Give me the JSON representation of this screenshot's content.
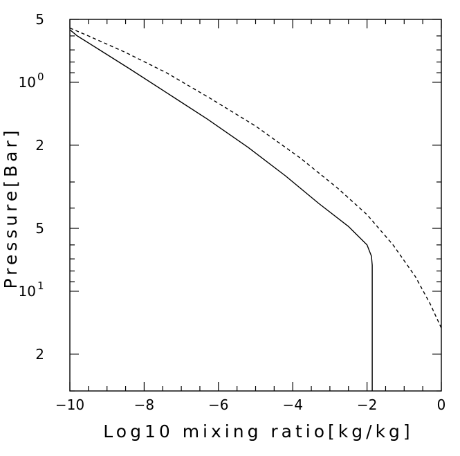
{
  "chart_data": {
    "type": "line",
    "title": "",
    "xlabel": "Log10 mixing ratio[kg/kg]",
    "ylabel": "Pressure[Bar]",
    "xlim": [
      -10,
      0
    ],
    "ylim": [
      0.5,
      30
    ],
    "y_scale": "log",
    "y_inverted": true,
    "grid": false,
    "legend": "none",
    "x_ticks": [
      {
        "value": -10,
        "label": "−10"
      },
      {
        "value": -8,
        "label": "−8"
      },
      {
        "value": -6,
        "label": "−6"
      },
      {
        "value": -4,
        "label": "−4"
      },
      {
        "value": -2,
        "label": "−2"
      },
      {
        "value": 0,
        "label": "0"
      }
    ],
    "y_ticks": [
      {
        "value": 0.5,
        "label": "5",
        "exp": ""
      },
      {
        "value": 1,
        "label": "10",
        "exp": "0"
      },
      {
        "value": 2,
        "label": "2",
        "exp": ""
      },
      {
        "value": 5,
        "label": "5",
        "exp": ""
      },
      {
        "value": 10,
        "label": "10",
        "exp": "1"
      },
      {
        "value": 20,
        "label": "2",
        "exp": ""
      }
    ],
    "series": [
      {
        "style": "solid",
        "color": "#000000",
        "x": [
          -10,
          -9.8,
          -9.2,
          -8.4,
          -7.4,
          -6.3,
          -5.2,
          -4.2,
          -3.3,
          -2.5,
          -2.0,
          -1.88,
          -1.86,
          -1.86,
          -1.86,
          -1.86
        ],
        "y": [
          0.56,
          0.6,
          0.7,
          0.86,
          1.12,
          1.5,
          2.05,
          2.8,
          3.8,
          4.9,
          6.0,
          6.8,
          7.5,
          9.0,
          15.0,
          30.0
        ]
      },
      {
        "style": "dashed",
        "color": "#000000",
        "x": [
          -10,
          -9.5,
          -8.5,
          -7.4,
          -6.2,
          -5.0,
          -3.8,
          -2.8,
          -2.0,
          -1.3,
          -0.7,
          -0.3,
          0
        ],
        "y": [
          0.55,
          0.6,
          0.72,
          0.9,
          1.2,
          1.62,
          2.3,
          3.2,
          4.3,
          6.0,
          8.5,
          11.5,
          15.0
        ]
      }
    ]
  }
}
